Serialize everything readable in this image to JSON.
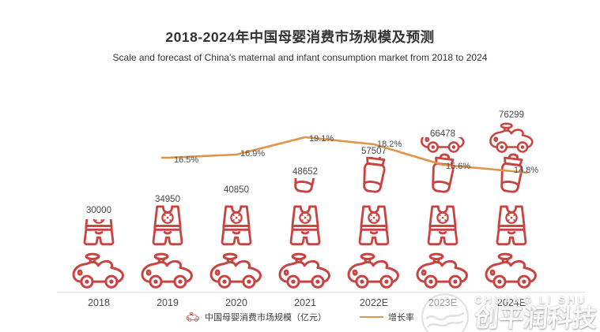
{
  "title": "2018-2024年中国母婴消费市场规模及预测",
  "subtitle": "Scale and forecast of China's maternal and infant consumption market from 2018 to 2024",
  "colors": {
    "icon_red": "#c94340",
    "line_orange": "#e0944a",
    "title_text": "#333333",
    "label_text": "#4c4c4c"
  },
  "chart_data": {
    "type": "bar",
    "subtype": "pictogram-bar-with-growth-line",
    "title": "2018-2024年中国母婴消费市场规模及预测",
    "categories": [
      "2018",
      "2019",
      "2020",
      "2021",
      "2022E",
      "2023E",
      "2024E"
    ],
    "series": [
      {
        "name": "中国母婴消费市场规模（亿元）",
        "type": "pictogram_bar",
        "values": [
          30000,
          34950,
          40850,
          48652,
          57507,
          66478,
          76299
        ]
      },
      {
        "name": "增长率",
        "type": "line",
        "unit": "%",
        "x": [
          "2019",
          "2020",
          "2021",
          "2022E",
          "2023E",
          "2024E"
        ],
        "values": [
          16.5,
          16.9,
          19.1,
          18.2,
          15.6,
          14.8
        ]
      }
    ],
    "value_labels": [
      "30000",
      "34950",
      "40850",
      "48652",
      "57507",
      "66478",
      "76299"
    ],
    "rate_labels": [
      "16.5%",
      "16.9%",
      "19.1%",
      "18.2%",
      "15.6%",
      "14.8%"
    ],
    "grid": false,
    "legend_position": "bottom-center",
    "icon_names": {
      "car": "ride-on-toy-car-icon",
      "romper": "baby-romper-icon",
      "bottle": "baby-bottle-icon"
    },
    "columns": [
      {
        "year": "2018",
        "value": "30000",
        "icons": [
          {
            "type": "car",
            "frac": 1
          },
          {
            "type": "romper",
            "frac": 0.66
          }
        ]
      },
      {
        "year": "2019",
        "value": "34950",
        "icons": [
          {
            "type": "car",
            "frac": 1
          },
          {
            "type": "romper",
            "frac": 1
          }
        ]
      },
      {
        "year": "2020",
        "value": "40850",
        "icons": [
          {
            "type": "car",
            "frac": 1
          },
          {
            "type": "romper",
            "frac": 1
          }
        ]
      },
      {
        "year": "2021",
        "value": "48652",
        "icons": [
          {
            "type": "car",
            "frac": 1
          },
          {
            "type": "romper",
            "frac": 1
          },
          {
            "type": "bottle",
            "frac": 0.38
          }
        ]
      },
      {
        "year": "2022E",
        "value": "57507",
        "icons": [
          {
            "type": "car",
            "frac": 1
          },
          {
            "type": "romper",
            "frac": 1
          },
          {
            "type": "bottle",
            "frac": 0.9
          }
        ]
      },
      {
        "year": "2023E",
        "value": "66478",
        "icons": [
          {
            "type": "car",
            "frac": 1
          },
          {
            "type": "romper",
            "frac": 1
          },
          {
            "type": "bottle",
            "frac": 1
          },
          {
            "type": "car",
            "frac": 0.5
          }
        ]
      },
      {
        "year": "2024E",
        "value": "76299",
        "icons": [
          {
            "type": "car",
            "frac": 1
          },
          {
            "type": "romper",
            "frac": 1
          },
          {
            "type": "bottle",
            "frac": 1
          },
          {
            "type": "car",
            "frac": 1
          }
        ]
      }
    ]
  },
  "legend": {
    "market": {
      "label": "中国母婴消费市场规模（亿元）",
      "swatch": "red-pictogram"
    },
    "growth": {
      "label": "增长率",
      "swatch": "orange-line"
    }
  },
  "watermark": {
    "latin": "CHUANG LI SHU",
    "cjk": "创平润科技"
  }
}
